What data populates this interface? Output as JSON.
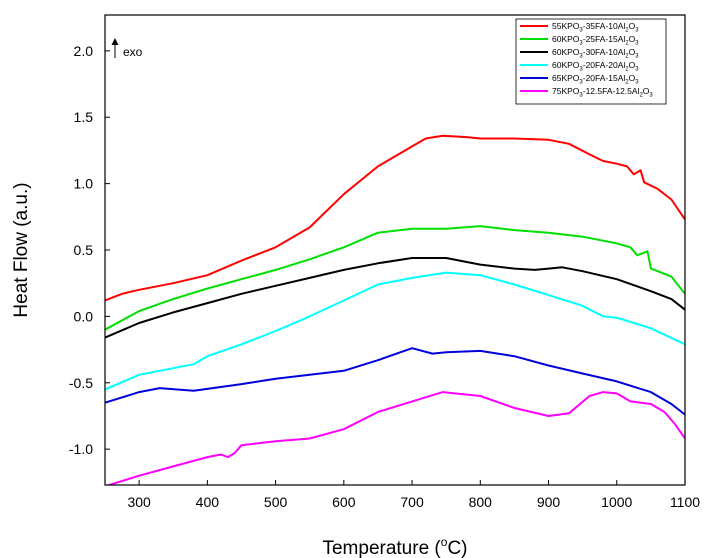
{
  "chart_data": {
    "type": "line",
    "xlabel": "Temperature (",
    "xlabel_unit_sup": "o",
    "xlabel_unit": "C)",
    "ylabel": "Heat Flow (a.u.)",
    "xlim": [
      250,
      1100
    ],
    "ylim": [
      -1.27,
      2.27
    ],
    "xticks": [
      300,
      400,
      500,
      600,
      700,
      800,
      900,
      1000,
      1100
    ],
    "yticks": [
      -1.0,
      -0.5,
      0.0,
      0.5,
      1.0,
      1.5,
      2.0
    ],
    "ytick_labels": [
      "-1.0",
      "-0.5",
      "0.0",
      "0.5",
      "1.0",
      "1.5",
      "2.0"
    ],
    "annotation": "exo",
    "legend_position": "top-right",
    "series": [
      {
        "name": "55KPO3-35FA-10Al2O3",
        "label_parts": [
          "55KPO",
          "3",
          "-35FA-10Al",
          "2",
          "O",
          "3"
        ],
        "color": "#ff0000",
        "x": [
          250,
          275,
          300,
          350,
          400,
          450,
          500,
          550,
          600,
          650,
          700,
          720,
          745,
          780,
          800,
          850,
          900,
          930,
          960,
          980,
          1000,
          1015,
          1025,
          1035,
          1040,
          1060,
          1080,
          1100
        ],
        "y": [
          0.12,
          0.17,
          0.2,
          0.25,
          0.31,
          0.42,
          0.52,
          0.67,
          0.92,
          1.13,
          1.28,
          1.34,
          1.36,
          1.35,
          1.34,
          1.34,
          1.33,
          1.3,
          1.22,
          1.17,
          1.15,
          1.13,
          1.07,
          1.1,
          1.01,
          0.96,
          0.88,
          0.73
        ]
      },
      {
        "name": "60KPO3-25FA-15Al2O3",
        "label_parts": [
          "60KPO",
          "3",
          "-25FA-15Al",
          "2",
          "O",
          "3"
        ],
        "color": "#00e000",
        "x": [
          250,
          300,
          350,
          400,
          450,
          500,
          550,
          600,
          650,
          700,
          750,
          800,
          850,
          900,
          950,
          980,
          1000,
          1020,
          1030,
          1045,
          1050,
          1060,
          1080,
          1100
        ],
        "y": [
          -0.1,
          0.04,
          0.13,
          0.21,
          0.28,
          0.35,
          0.43,
          0.52,
          0.63,
          0.66,
          0.66,
          0.68,
          0.65,
          0.63,
          0.6,
          0.57,
          0.55,
          0.52,
          0.46,
          0.49,
          0.36,
          0.34,
          0.3,
          0.17
        ]
      },
      {
        "name": "60KPO3-30FA-10Al2O3",
        "label_parts": [
          "60KPO",
          "3",
          "-30FA-10Al",
          "2",
          "O",
          "3"
        ],
        "color": "#000000",
        "x": [
          250,
          300,
          350,
          400,
          450,
          500,
          550,
          600,
          650,
          700,
          750,
          800,
          850,
          880,
          900,
          920,
          950,
          1000,
          1050,
          1080,
          1100
        ],
        "y": [
          -0.16,
          -0.05,
          0.03,
          0.1,
          0.17,
          0.23,
          0.29,
          0.35,
          0.4,
          0.44,
          0.44,
          0.39,
          0.36,
          0.35,
          0.36,
          0.37,
          0.34,
          0.28,
          0.19,
          0.13,
          0.05
        ]
      },
      {
        "name": "60KPO3-20FA-20Al2O3",
        "label_parts": [
          "60KPO",
          "3",
          "-20FA-20Al",
          "2",
          "O",
          "3"
        ],
        "color": "#00ffff",
        "x": [
          250,
          300,
          350,
          380,
          400,
          450,
          500,
          550,
          600,
          650,
          700,
          750,
          800,
          850,
          900,
          950,
          980,
          1000,
          1050,
          1100
        ],
        "y": [
          -0.55,
          -0.44,
          -0.39,
          -0.36,
          -0.3,
          -0.21,
          -0.11,
          0.0,
          0.12,
          0.24,
          0.29,
          0.33,
          0.31,
          0.24,
          0.16,
          0.08,
          0.0,
          -0.01,
          -0.09,
          -0.21
        ]
      },
      {
        "name": "65KPO3-20FA-15Al2O3",
        "label_parts": [
          "65KPO",
          "3",
          "-20FA-15Al",
          "2",
          "O",
          "3"
        ],
        "color": "#0000dd",
        "x": [
          250,
          300,
          330,
          380,
          450,
          500,
          550,
          600,
          650,
          700,
          730,
          750,
          800,
          850,
          900,
          950,
          1000,
          1050,
          1080,
          1100
        ],
        "y": [
          -0.65,
          -0.57,
          -0.54,
          -0.56,
          -0.51,
          -0.47,
          -0.44,
          -0.41,
          -0.33,
          -0.24,
          -0.28,
          -0.27,
          -0.26,
          -0.3,
          -0.37,
          -0.43,
          -0.49,
          -0.57,
          -0.66,
          -0.74
        ]
      },
      {
        "name": "75KPO3-12.5FA-12.5Al2O3",
        "label_parts": [
          "75KPO",
          "3",
          "-12.5FA-12.5Al",
          "2",
          "O",
          "3"
        ],
        "color": "#ff00ff",
        "x": [
          250,
          300,
          350,
          400,
          420,
          430,
          440,
          450,
          500,
          550,
          600,
          650,
          700,
          745,
          800,
          850,
          900,
          930,
          960,
          980,
          1000,
          1020,
          1050,
          1070,
          1085,
          1100
        ],
        "y": [
          -1.28,
          -1.2,
          -1.13,
          -1.06,
          -1.04,
          -1.06,
          -1.03,
          -0.97,
          -0.94,
          -0.92,
          -0.85,
          -0.72,
          -0.64,
          -0.57,
          -0.6,
          -0.69,
          -0.75,
          -0.73,
          -0.6,
          -0.57,
          -0.58,
          -0.64,
          -0.66,
          -0.72,
          -0.81,
          -0.92
        ]
      }
    ]
  }
}
